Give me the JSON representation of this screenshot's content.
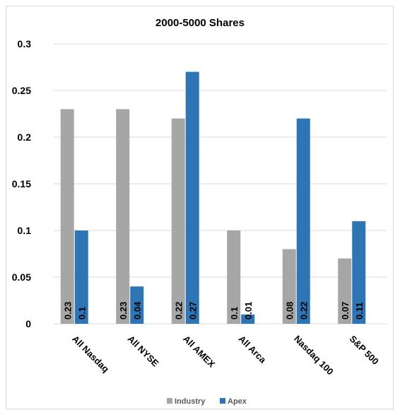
{
  "chart_data": {
    "type": "bar",
    "title": "2000-5000 Shares",
    "categories": [
      "All Nasdaq",
      "All NYSE",
      "All AMEX",
      "All Arca",
      "Nasdaq 100",
      "S&P 500"
    ],
    "series": [
      {
        "name": "Industry",
        "values": [
          0.23,
          0.23,
          0.22,
          0.1,
          0.08,
          0.07
        ],
        "labels": [
          "0.23",
          "0.23",
          "0.22",
          "0.1",
          "0.08",
          "0.07"
        ],
        "color": "#a6a6a6"
      },
      {
        "name": "Apex",
        "values": [
          0.1,
          0.04,
          0.27,
          0.01,
          0.22,
          0.11
        ],
        "labels": [
          "0.1",
          "0.04",
          "0.27",
          "0.01",
          "0.22",
          "0.11"
        ],
        "color": "#2e75b6"
      }
    ],
    "yticks": [
      "0",
      "0.05",
      "0.1",
      "0.15",
      "0.2",
      "0.25",
      "0.3"
    ],
    "ylim": [
      0,
      0.3
    ],
    "xlabel": "",
    "ylabel": "",
    "grid": true,
    "legend": "bottom",
    "gridColor": "#d9d9d9"
  }
}
